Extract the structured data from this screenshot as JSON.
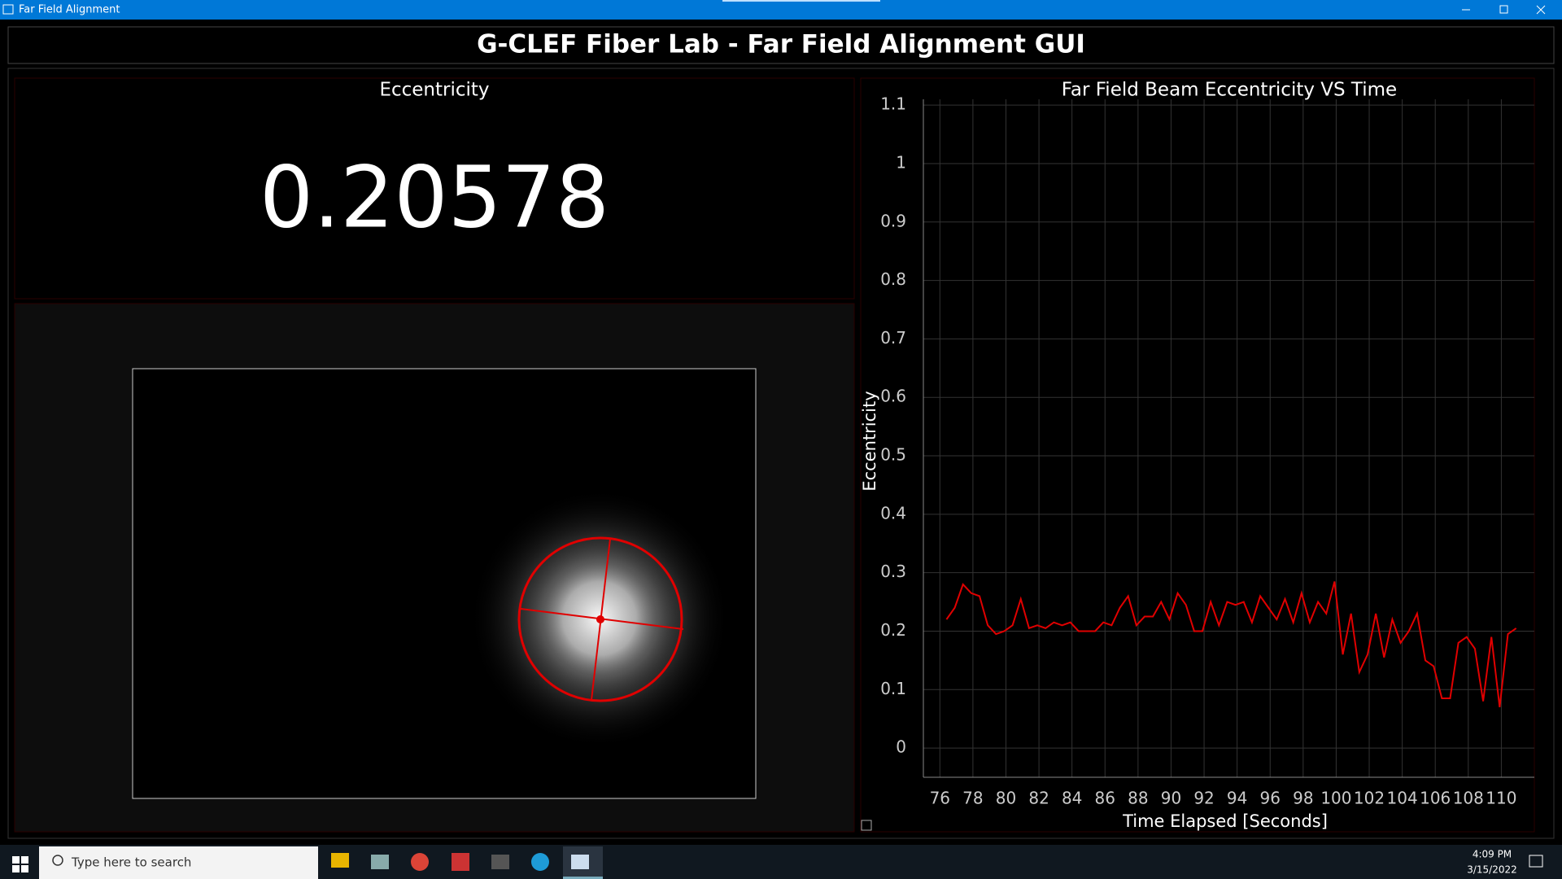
{
  "window": {
    "title": "Far Field Alignment"
  },
  "header": {
    "title": "G-CLEF Fiber Lab - Far Field Alignment GUI"
  },
  "eccentricity": {
    "label": "Eccentricity",
    "value": 0.20578
  },
  "chart_data": {
    "type": "line",
    "title": "Far Field Beam Eccentricity VS Time",
    "x_label": "Time Elapsed [Seconds]",
    "y_label": "Eccentricity",
    "x": [
      76.4,
      76.9,
      77.4,
      77.9,
      78.4,
      78.9,
      79.4,
      79.9,
      80.4,
      80.9,
      81.4,
      81.9,
      82.4,
      82.9,
      83.4,
      83.9,
      84.4,
      84.9,
      85.4,
      85.9,
      86.4,
      86.9,
      87.4,
      87.9,
      88.4,
      88.9,
      89.4,
      89.9,
      90.4,
      90.9,
      91.4,
      91.9,
      92.4,
      92.9,
      93.4,
      93.9,
      94.4,
      94.9,
      95.4,
      95.9,
      96.4,
      96.9,
      97.4,
      97.9,
      98.4,
      98.9,
      99.4,
      99.9,
      100.4,
      100.9,
      101.4,
      101.9,
      102.4,
      102.9,
      103.4,
      103.9,
      104.4,
      104.9,
      105.4,
      105.9,
      106.4,
      106.9,
      107.4,
      107.9,
      108.4,
      108.9,
      109.4,
      109.9,
      110.4,
      110.9
    ],
    "values": [
      0.22,
      0.24,
      0.28,
      0.265,
      0.26,
      0.21,
      0.195,
      0.2,
      0.21,
      0.255,
      0.205,
      0.21,
      0.205,
      0.215,
      0.21,
      0.215,
      0.2,
      0.2,
      0.2,
      0.215,
      0.21,
      0.24,
      0.26,
      0.21,
      0.225,
      0.225,
      0.25,
      0.22,
      0.265,
      0.245,
      0.2,
      0.2,
      0.25,
      0.21,
      0.25,
      0.245,
      0.25,
      0.215,
      0.26,
      0.24,
      0.22,
      0.255,
      0.215,
      0.265,
      0.215,
      0.25,
      0.23,
      0.285,
      0.16,
      0.23,
      0.13,
      0.16,
      0.23,
      0.155,
      0.22,
      0.18,
      0.2,
      0.23,
      0.15,
      0.14,
      0.085,
      0.085,
      0.18,
      0.19,
      0.17,
      0.08,
      0.19,
      0.07,
      0.195,
      0.205
    ],
    "color": "#e00000",
    "xlim": [
      75,
      112
    ],
    "ylim": [
      -0.05,
      1.11
    ],
    "xticks": [
      76,
      78,
      80,
      82,
      84,
      86,
      88,
      90,
      92,
      94,
      96,
      98,
      100,
      102,
      104,
      106,
      108,
      110
    ],
    "yticks": [
      0,
      0.1,
      0.2,
      0.3,
      0.4,
      0.5,
      0.6,
      0.7,
      0.8,
      0.9,
      1,
      1.1
    ],
    "grid": true
  },
  "taskbar": {
    "search": "Type here to search",
    "time": "4:09 PM",
    "date": "3/15/2022"
  }
}
